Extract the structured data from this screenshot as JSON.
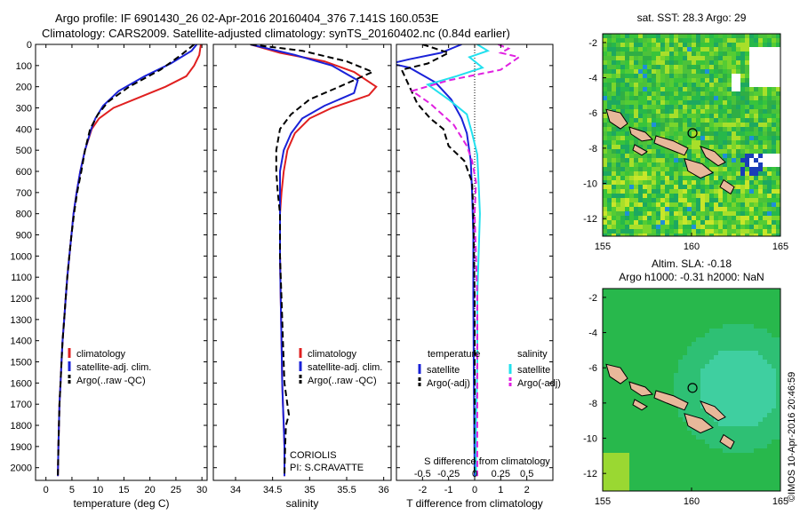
{
  "header": {
    "title_line1": "Argo profile: IF 6901430_26 02-Apr-2016 20160404_376 7.141S 160.053E",
    "title_line2": "Climatology: CARS2009. Satellite-adjusted climatology: synTS_20160402.nc (0.84d earlier)"
  },
  "colors": {
    "climatology": "#e02020",
    "satellite": "#1a22d8",
    "argo": "#000000",
    "salinity_satellite": "#22e0ee",
    "salinity_argo": "#e020e0",
    "land": "#e8b89a"
  },
  "chart_data": [
    {
      "type": "line",
      "name": "temperature-profile",
      "xlabel": "temperature (deg C)",
      "ylabel": "",
      "xlim": [
        -2,
        31
      ],
      "ylim": [
        2060,
        0
      ],
      "xticks": [
        0,
        5,
        10,
        15,
        20,
        25,
        30
      ],
      "yticks": [
        0,
        100,
        200,
        300,
        400,
        500,
        600,
        700,
        800,
        900,
        1000,
        1100,
        1200,
        1300,
        1400,
        1500,
        1600,
        1700,
        1800,
        1900,
        2000
      ],
      "legend": [
        "climatology",
        "satellite-adj. clim.",
        "Argo(..raw -QC)"
      ],
      "series": [
        {
          "name": "climatology",
          "style": "solid",
          "color": "#e02020",
          "x": [
            29.8,
            29.5,
            28.5,
            27.0,
            23.0,
            18.0,
            13.0,
            10.2,
            8.8,
            7.5,
            6.6,
            5.9,
            5.3,
            4.9,
            4.5,
            4.1,
            3.8,
            3.5,
            3.2,
            3.0,
            2.8,
            2.6,
            2.5,
            2.4,
            2.3
          ],
          "y": [
            0,
            50,
            100,
            150,
            200,
            250,
            300,
            350,
            400,
            500,
            600,
            700,
            800,
            900,
            1000,
            1100,
            1200,
            1300,
            1400,
            1500,
            1600,
            1700,
            1800,
            1900,
            2040
          ]
        },
        {
          "name": "satellite-adj. clim.",
          "style": "solid",
          "color": "#1a22d8",
          "x": [
            29.0,
            28.0,
            24.0,
            19.0,
            14.0,
            11.0,
            9.5,
            8.7,
            7.5,
            6.6,
            5.9,
            5.3,
            4.9,
            4.5,
            4.1,
            3.8,
            3.5,
            3.2,
            3.0,
            2.8,
            2.6,
            2.5,
            2.4,
            2.3
          ],
          "y": [
            0,
            30,
            90,
            150,
            220,
            290,
            350,
            400,
            500,
            600,
            700,
            800,
            900,
            1000,
            1100,
            1200,
            1300,
            1400,
            1500,
            1600,
            1700,
            1800,
            1900,
            2040
          ]
        },
        {
          "name": "Argo(..raw -QC)",
          "style": "dash",
          "color": "#000000",
          "x": [
            28.5,
            26.0,
            22.0,
            16.0,
            12.0,
            10.0,
            8.5,
            7.5,
            6.8,
            6.0,
            5.4,
            4.9,
            4.5,
            4.1,
            3.8,
            3.5,
            3.2,
            3.0,
            2.8,
            2.6,
            2.5,
            2.4,
            2.3
          ],
          "y": [
            0,
            50,
            120,
            200,
            270,
            330,
            400,
            500,
            600,
            700,
            800,
            900,
            1000,
            1100,
            1200,
            1300,
            1400,
            1500,
            1600,
            1700,
            1800,
            1900,
            2040
          ]
        }
      ]
    },
    {
      "type": "line",
      "name": "salinity-profile",
      "xlabel": "salinity",
      "xlim": [
        33.7,
        36.1
      ],
      "ylim": [
        2060,
        0
      ],
      "xticks": [
        34,
        34.5,
        35,
        35.5,
        36
      ],
      "legend": [
        "climatology",
        "satellite-adj. clim.",
        "Argo(..raw -QC)"
      ],
      "annotation": [
        "CORIOLIS",
        "PI: S.CRAVATTE"
      ],
      "series": [
        {
          "name": "climatology",
          "style": "solid",
          "color": "#e02020",
          "x": [
            34.2,
            34.6,
            35.2,
            35.6,
            35.9,
            35.8,
            35.3,
            35.0,
            34.8,
            34.7,
            34.65,
            34.62,
            34.6,
            34.6,
            34.6,
            34.61,
            34.62,
            34.63,
            34.64,
            34.65,
            34.66,
            34.66
          ],
          "y": [
            0,
            40,
            80,
            130,
            200,
            240,
            300,
            350,
            420,
            500,
            600,
            700,
            800,
            900,
            1000,
            1200,
            1400,
            1600,
            1700,
            1800,
            1900,
            2040
          ]
        },
        {
          "name": "satellite-adj. clim.",
          "style": "solid",
          "color": "#1a22d8",
          "x": [
            34.2,
            34.8,
            35.3,
            35.65,
            35.6,
            35.2,
            34.9,
            34.75,
            34.65,
            34.6,
            34.6,
            34.6,
            34.6,
            34.61,
            34.62,
            34.63,
            34.64,
            34.65,
            34.66,
            34.66
          ],
          "y": [
            0,
            50,
            100,
            170,
            230,
            290,
            350,
            420,
            500,
            600,
            700,
            800,
            1000,
            1200,
            1400,
            1600,
            1700,
            1800,
            1900,
            2040
          ]
        },
        {
          "name": "Argo(..raw -QC)",
          "style": "dash",
          "color": "#000000",
          "x": [
            34.2,
            34.9,
            35.5,
            35.85,
            35.4,
            35.0,
            34.75,
            34.6,
            34.55,
            34.55,
            34.57,
            34.6,
            34.6,
            34.62,
            34.64,
            34.66,
            34.7,
            34.72,
            34.68,
            34.67,
            34.66
          ],
          "y": [
            0,
            30,
            80,
            130,
            200,
            260,
            330,
            400,
            500,
            600,
            700,
            800,
            1000,
            1200,
            1400,
            1600,
            1700,
            1750,
            1800,
            1900,
            2040
          ]
        }
      ]
    },
    {
      "type": "line",
      "name": "difference-profile",
      "xlabel": "T difference from climatology",
      "top_xlabel": "S difference from climatology",
      "xlim": [
        -3.0,
        3.0
      ],
      "ylim": [
        2060,
        0
      ],
      "xticks": [
        -2,
        -1,
        0,
        1,
        2
      ],
      "top_xticks": [
        "-0.5",
        "-0.25",
        "0",
        "0.25",
        "0.5"
      ],
      "top_xtick_pos": [
        -2,
        -1,
        0,
        1,
        2
      ],
      "legend_titles": [
        "temperature",
        "salinity"
      ],
      "legend": [
        "satellite",
        "Argo(-adj)",
        "satellite",
        "Argo(-adj)"
      ],
      "series": [
        {
          "name": "temperature satellite",
          "style": "solid",
          "color": "#1a22d8",
          "x": [
            -0.5,
            -1.3,
            -2.5,
            -3.2,
            -2.5,
            -1.5,
            -0.9,
            -0.5,
            -0.3,
            -0.15,
            -0.1,
            -0.05,
            -0.05,
            -0.03,
            0
          ],
          "y": [
            0,
            40,
            70,
            90,
            110,
            180,
            260,
            350,
            420,
            550,
            700,
            900,
            1200,
            1600,
            2040
          ]
        },
        {
          "name": "temperature Argo(-adj)",
          "style": "dash",
          "color": "#000000",
          "x": [
            -2.0,
            -1.0,
            -1.8,
            -2.8,
            -2.2,
            -1.7,
            -1.2,
            -1.0,
            -0.4,
            -0.1,
            -0.05,
            0,
            0
          ],
          "y": [
            0,
            40,
            90,
            120,
            280,
            350,
            400,
            480,
            550,
            650,
            800,
            1200,
            2040
          ]
        },
        {
          "name": "salinity satellite",
          "style": "solid",
          "color": "#22e0ee",
          "x": [
            0.1,
            0.5,
            -0.2,
            0.3,
            -0.7,
            -1.8,
            -1.0,
            -0.3,
            -0.1,
            0.1,
            0.15,
            0.2,
            0.15,
            0.1,
            0.1,
            0.05,
            0.05
          ],
          "y": [
            0,
            30,
            60,
            110,
            150,
            190,
            260,
            330,
            420,
            520,
            650,
            800,
            1000,
            1200,
            1500,
            1800,
            2040
          ]
        },
        {
          "name": "salinity Argo(-adj)",
          "style": "dash",
          "color": "#e020e0",
          "x": [
            0.9,
            1.3,
            1.0,
            1.7,
            1.0,
            -1.0,
            -2.4,
            -1.7,
            -0.8,
            -0.3,
            -0.1,
            0.05,
            0.0,
            0.1,
            0.1
          ],
          "y": [
            0,
            20,
            40,
            60,
            120,
            170,
            220,
            280,
            380,
            480,
            550,
            650,
            800,
            1200,
            2040
          ]
        }
      ]
    },
    {
      "type": "heatmap",
      "name": "sst-map",
      "title": "sat. SST: 28.3 Argo: 29",
      "xlim": [
        155,
        165
      ],
      "ylim": [
        -13,
        -1.5
      ],
      "xticks": [
        155,
        160,
        165
      ],
      "yticks": [
        -2,
        -4,
        -6,
        -8,
        -10,
        -12
      ],
      "marker": {
        "lon": 160.053,
        "lat": -7.141
      }
    },
    {
      "type": "heatmap",
      "name": "sla-map",
      "title": "Altim. SLA: -0.18",
      "subtitle": "Argo h1000: -0.31 h2000: NaN",
      "xlim": [
        155,
        165
      ],
      "ylim": [
        -13,
        -1.5
      ],
      "xticks": [
        155,
        160,
        165
      ],
      "yticks": [
        -2,
        -4,
        -6,
        -8,
        -10,
        -12
      ],
      "marker": {
        "lon": 160.053,
        "lat": -7.141
      }
    }
  ],
  "footer": {
    "credit": "©IMOS 10-Apr-2016 20:46:59"
  }
}
